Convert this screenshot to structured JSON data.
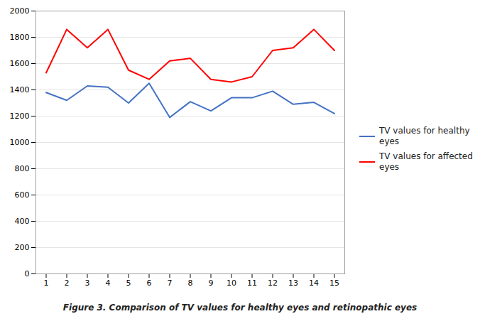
{
  "chart_data": {
    "type": "line",
    "caption": "Figure 3. Comparison of TV values for healthy eyes and retinopathic eyes",
    "x": [
      1,
      2,
      3,
      4,
      5,
      6,
      7,
      8,
      9,
      10,
      11,
      12,
      13,
      14,
      15
    ],
    "series": [
      {
        "name": "TV values for healthy\neyes",
        "color": "#4472C4",
        "values": [
          1380,
          1320,
          1430,
          1420,
          1300,
          1450,
          1190,
          1310,
          1240,
          1340,
          1340,
          1390,
          1290,
          1305,
          1220
        ]
      },
      {
        "name": "TV values for affected\neyes",
        "color": "#FF0000",
        "values": [
          1530,
          1860,
          1720,
          1860,
          1550,
          1480,
          1620,
          1640,
          1480,
          1460,
          1500,
          1700,
          1720,
          1860,
          1700
        ]
      }
    ],
    "xlim": [
      0.5,
      15.5
    ],
    "xticks": [
      1,
      2,
      3,
      4,
      5,
      6,
      7,
      8,
      9,
      10,
      11,
      12,
      13,
      14,
      15
    ],
    "ylim": [
      0,
      2000
    ],
    "yticks": [
      0,
      200,
      400,
      600,
      800,
      1000,
      1200,
      1400,
      1600,
      1800,
      2000
    ],
    "grid": "y",
    "legend": "right"
  }
}
